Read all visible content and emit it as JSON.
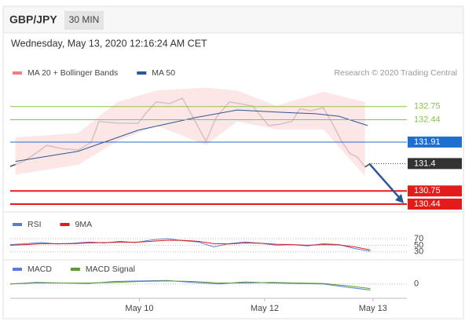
{
  "header": {
    "symbol": "GBP/JPY",
    "interval": "30 MIN",
    "date": "Wednesday, May 13, 2020 12:16:24 AM CET"
  },
  "chart_data": [
    {
      "type": "line",
      "source": "Research © 2020 Trading Central",
      "xlim": [
        0,
        152
      ],
      "ylim": [
        130.29,
        133.23
      ],
      "series": [
        {
          "color": "#444444",
          "x": [
            0,
            5,
            10,
            14,
            20,
            26,
            31,
            34,
            41,
            49,
            52,
            56,
            61,
            66,
            70,
            75,
            79,
            84,
            88,
            93,
            99,
            103,
            108,
            111,
            115,
            120,
            123,
            127,
            130,
            133,
            136,
            138
          ],
          "values": [
            131.33,
            131.45,
            131.65,
            131.83,
            131.75,
            131.72,
            131.9,
            132.4,
            132.36,
            132.35,
            132.6,
            132.86,
            132.82,
            132.95,
            132.5,
            131.93,
            132.5,
            132.86,
            132.82,
            132.76,
            132.3,
            132.33,
            132.4,
            132.7,
            132.65,
            132.72,
            132.4,
            131.93,
            131.65,
            131.55,
            131.32,
            131.4
          ]
        },
        {
          "name": "MA 20 + Bollinger Bands",
          "color": "#f08080",
          "band": "#fde0e0",
          "x": [
            2,
            26,
            41,
            56,
            75,
            87,
            102,
            120,
            136
          ],
          "upper": [
            132.02,
            132.12,
            132.86,
            133.13,
            133.2,
            133.13,
            132.77,
            133.1,
            132.86
          ],
          "lower": [
            131.14,
            131.37,
            131.93,
            132.3,
            131.84,
            132.4,
            132.21,
            132.21,
            131.1
          ]
        },
        {
          "name": "MA 50",
          "color": "#2b5797",
          "x": [
            2,
            26,
            49,
            71,
            87,
            102,
            117,
            126,
            137
          ],
          "values": [
            131.45,
            131.69,
            132.19,
            132.49,
            132.67,
            132.62,
            132.58,
            132.52,
            132.3
          ]
        }
      ],
      "levels": [
        {
          "value": 132.75,
          "color": "#8bc34a",
          "style": "line"
        },
        {
          "value": 132.44,
          "color": "#8bc34a",
          "style": "line"
        },
        {
          "value": 131.91,
          "color": "#1f6fd0",
          "style": "box"
        },
        {
          "value": 131.4,
          "color": "#333333",
          "style": "box"
        },
        {
          "value": 130.75,
          "color": "#e31b1b",
          "style": "box"
        },
        {
          "value": 130.44,
          "color": "#e31b1b",
          "style": "box"
        }
      ]
    },
    {
      "type": "line",
      "xlim": [
        0,
        152
      ],
      "ylim": [
        13,
        89
      ],
      "yticks": [
        70,
        50,
        30
      ],
      "series": [
        {
          "name": "RSI",
          "color": "#5b7bd5",
          "x": [
            0,
            6,
            12,
            18,
            24,
            30,
            36,
            42,
            48,
            54,
            60,
            66,
            72,
            78,
            84,
            90,
            96,
            102,
            108,
            114,
            120,
            126,
            132,
            138
          ],
          "values": [
            52,
            55,
            58,
            54,
            56,
            60,
            57,
            62,
            58,
            66,
            70,
            64,
            60,
            45,
            55,
            60,
            56,
            50,
            52,
            48,
            55,
            52,
            40,
            32
          ]
        },
        {
          "name": "9MA",
          "color": "#e31b1b",
          "x": [
            0,
            6,
            12,
            18,
            24,
            30,
            36,
            42,
            48,
            54,
            60,
            66,
            72,
            78,
            84,
            90,
            96,
            102,
            108,
            114,
            120,
            126,
            132,
            138
          ],
          "values": [
            50,
            52,
            55,
            55,
            55,
            57,
            58,
            59,
            59,
            62,
            65,
            65,
            62,
            55,
            54,
            57,
            56,
            53,
            52,
            50,
            52,
            51,
            45,
            36
          ]
        }
      ]
    },
    {
      "type": "line",
      "xlim": [
        0,
        152
      ],
      "ylim": [
        -0.25,
        0.15
      ],
      "yticks": [
        0
      ],
      "xticks": [
        {
          "value": 49.5,
          "label": "May 10"
        },
        {
          "value": 97.5,
          "label": "May 12"
        },
        {
          "value": 139,
          "label": "May 13"
        }
      ],
      "series": [
        {
          "name": "MACD",
          "color": "#5b7bd5",
          "x": [
            0,
            10,
            20,
            30,
            40,
            50,
            60,
            70,
            80,
            90,
            100,
            110,
            120,
            130,
            138
          ],
          "values": [
            0.0,
            0.03,
            0.02,
            0.01,
            0.05,
            0.06,
            0.07,
            0.03,
            0.0,
            0.04,
            0.02,
            0.01,
            0.0,
            -0.07,
            -0.12
          ]
        },
        {
          "name": "MACD Signal",
          "color": "#5aa02c",
          "x": [
            0,
            10,
            20,
            30,
            40,
            50,
            60,
            70,
            80,
            90,
            100,
            110,
            120,
            130,
            138
          ],
          "values": [
            0.0,
            0.02,
            0.02,
            0.02,
            0.03,
            0.05,
            0.06,
            0.05,
            0.02,
            0.02,
            0.03,
            0.02,
            0.01,
            -0.04,
            -0.09
          ]
        }
      ]
    }
  ]
}
